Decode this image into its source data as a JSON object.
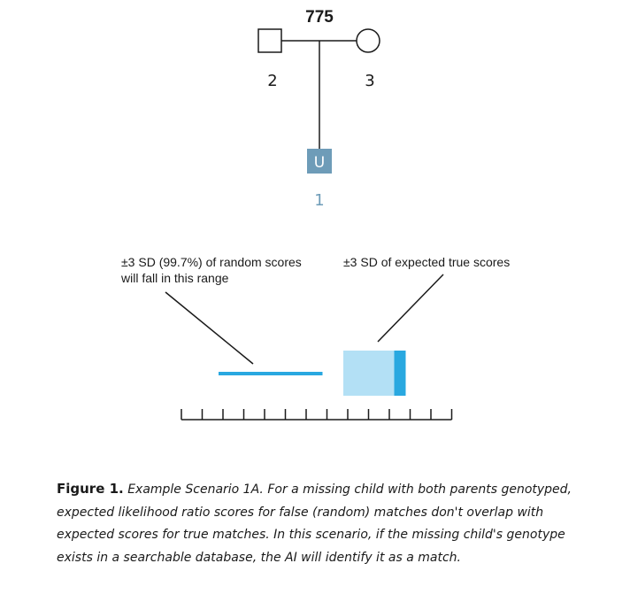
{
  "pedigree": {
    "family_id": "775",
    "father_label": "2",
    "mother_label": "3",
    "unknown_symbol": "U",
    "unknown_label": "1",
    "colors": {
      "line": "#1a1a1a",
      "unknown_fill": "#6e9cb8",
      "unknown_label": "#6e9cb8"
    }
  },
  "annotations": {
    "random_scores_line1": "±3 SD  (99.7%)  of random scores",
    "random_scores_line2": "will fall in this range",
    "true_scores": "±3 SD  of expected true scores"
  },
  "score_scale": {
    "tick_count": 14,
    "random_range": {
      "start": 2,
      "end": 7
    },
    "true_range": {
      "start": 8,
      "end": 11
    },
    "colors": {
      "random_bar": "#29a8e0",
      "true_box": "#b3e0f5",
      "true_edge": "#29a8e0",
      "axis": "#1a1a1a"
    }
  },
  "caption": {
    "lead": "Figure 1.",
    "body": "Example Scenario 1A. For a missing child with both parents genotyped, expected likelihood ratio scores for false (random) matches don't overlap with expected scores for true matches. In this scenario, if the missing child's genotype exists in a searchable database, the AI will identify it as a match."
  }
}
